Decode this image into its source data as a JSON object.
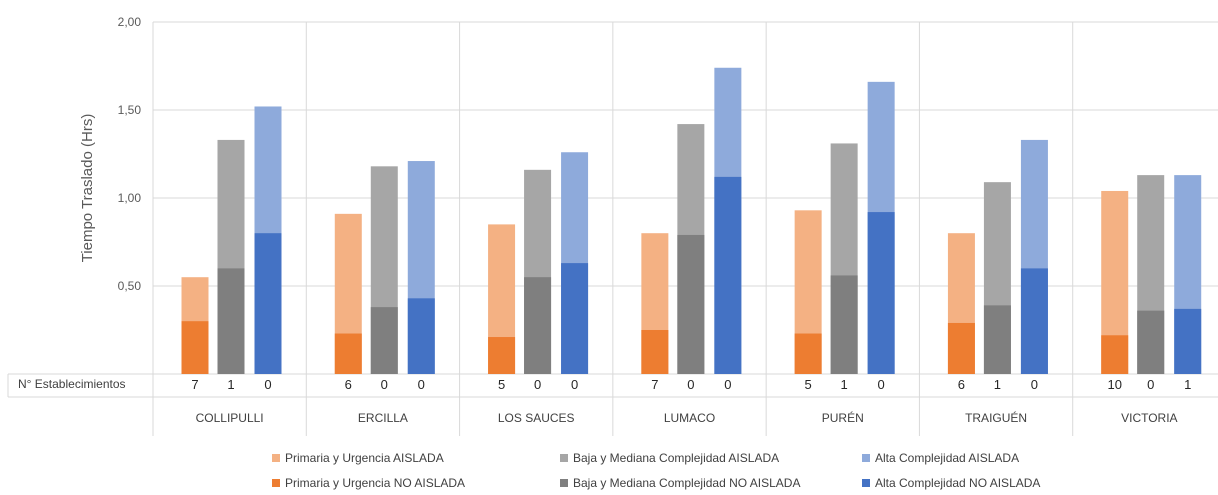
{
  "chart_data": {
    "type": "bar",
    "ylabel": "Tiempo Traslado (Hrs)",
    "ylim": [
      0,
      2.0
    ],
    "yticks": [
      "2,00",
      "1,50",
      "1,00",
      "0,50"
    ],
    "categories": [
      "COLLIPULLI",
      "ERCILLA",
      "LOS SAUCES",
      "LUMACO",
      "PURÉN",
      "TRAIGUÉN",
      "VICTORIA"
    ],
    "row_label": "N° Establecimientos",
    "establecimientos": [
      [
        7,
        1,
        0
      ],
      [
        6,
        0,
        0
      ],
      [
        5,
        0,
        0
      ],
      [
        7,
        0,
        0
      ],
      [
        5,
        1,
        0
      ],
      [
        6,
        1,
        0
      ],
      [
        10,
        0,
        1
      ]
    ],
    "series": [
      {
        "name": "Primaria y Urgencia AISLADA",
        "color": "#F4B183",
        "values": [
          0.55,
          0.91,
          0.85,
          0.8,
          0.93,
          0.8,
          1.04
        ]
      },
      {
        "name": "Baja y Mediana Complejidad AISLADA",
        "color": "#A6A6A6",
        "values": [
          1.33,
          1.18,
          1.16,
          1.42,
          1.31,
          1.09,
          1.13
        ]
      },
      {
        "name": "Alta Complejidad AISLADA",
        "color": "#8EAADB",
        "values": [
          1.52,
          1.21,
          1.26,
          1.74,
          1.66,
          1.33,
          1.13
        ]
      },
      {
        "name": "Primaria y Urgencia NO AISLADA",
        "color": "#ED7D31",
        "values": [
          0.3,
          0.23,
          0.21,
          0.25,
          0.23,
          0.29,
          0.22
        ]
      },
      {
        "name": "Baja y Mediana Complejidad NO AISLADA",
        "color": "#7F7F7F",
        "values": [
          0.6,
          0.38,
          0.55,
          0.79,
          0.56,
          0.39,
          0.36
        ]
      },
      {
        "name": "Alta Complejidad NO AISLADA",
        "color": "#4472C4",
        "values": [
          0.8,
          0.43,
          0.63,
          1.12,
          0.92,
          0.6,
          0.37
        ]
      }
    ],
    "grid": true,
    "legend": "bottom"
  }
}
